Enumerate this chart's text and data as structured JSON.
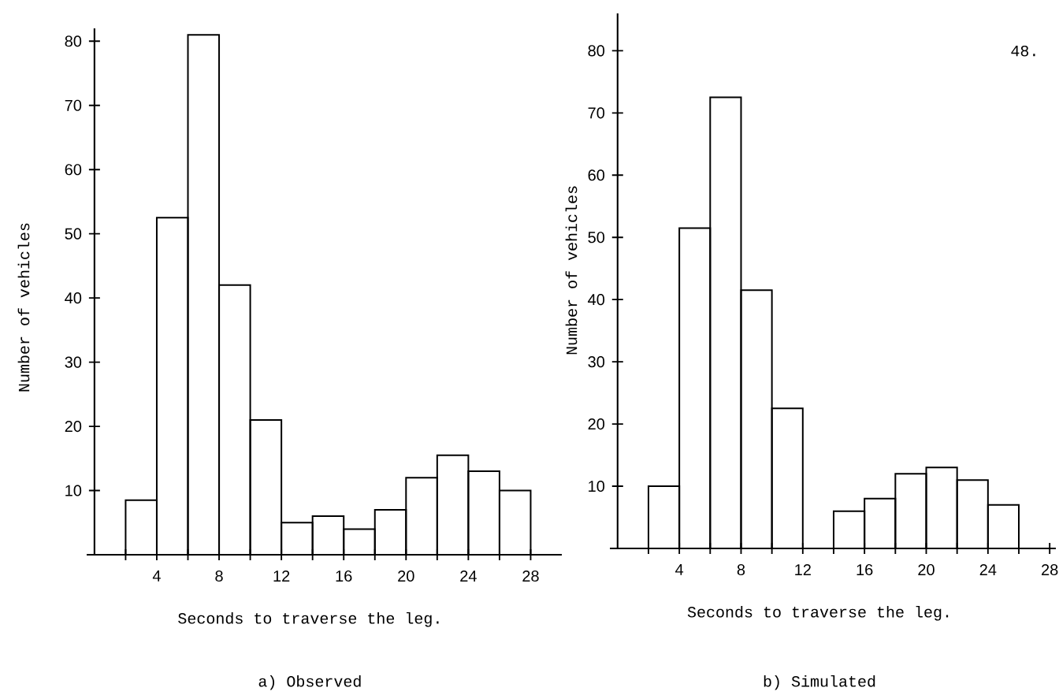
{
  "chart_data": [
    {
      "type": "histogram",
      "bins": [
        2,
        4,
        6,
        8,
        10,
        12,
        14,
        16,
        18,
        20,
        22,
        24,
        26,
        28
      ],
      "values": [
        8.5,
        52.5,
        81,
        42,
        21,
        5,
        6,
        4,
        7,
        12,
        15.5,
        13,
        10
      ],
      "color": "#000000",
      "xlim": [
        -0.5,
        30
      ],
      "ylim": [
        0,
        82
      ],
      "xticks": [
        {
          "value": 2,
          "label": null
        },
        4,
        {
          "value": 6,
          "label": null
        },
        8,
        {
          "value": 10,
          "label": null
        },
        12,
        {
          "value": 14,
          "label": null
        },
        16,
        {
          "value": 18,
          "label": null
        },
        20,
        {
          "value": 22,
          "label": null
        },
        24,
        {
          "value": 26,
          "label": null
        },
        28
      ],
      "yticks": [
        10,
        20,
        30,
        40,
        50,
        60,
        70,
        80
      ],
      "xlabel": "Seconds to traverse the leg.",
      "ylabel": "Number of vehicles",
      "annotations": [
        "a)  Observed"
      ]
    },
    {
      "type": "histogram",
      "bins": [
        2,
        4,
        6,
        8,
        10,
        12,
        14,
        16,
        18,
        20,
        22,
        24,
        26
      ],
      "values": [
        10,
        51.5,
        72.5,
        41.5,
        22.5,
        0,
        6,
        8,
        12,
        13,
        11,
        7
      ],
      "color": "#000000",
      "xlim": [
        -0.5,
        28.4
      ],
      "ylim": [
        0,
        86
      ],
      "xticks": [
        {
          "value": 2,
          "label": null
        },
        4,
        {
          "value": 6,
          "label": null
        },
        8,
        {
          "value": 10,
          "label": null
        },
        12,
        {
          "value": 14,
          "label": null
        },
        16,
        {
          "value": 18,
          "label": null
        },
        20,
        {
          "value": 22,
          "label": null
        },
        24,
        {
          "value": 26,
          "label": null
        },
        28
      ],
      "yticks": [
        10,
        20,
        30,
        40,
        50,
        60,
        70,
        80
      ],
      "xlabel": "Seconds to traverse the leg.",
      "ylabel": "Number of vehicles",
      "annotations": [
        "b)  Simulated",
        "48."
      ]
    }
  ]
}
